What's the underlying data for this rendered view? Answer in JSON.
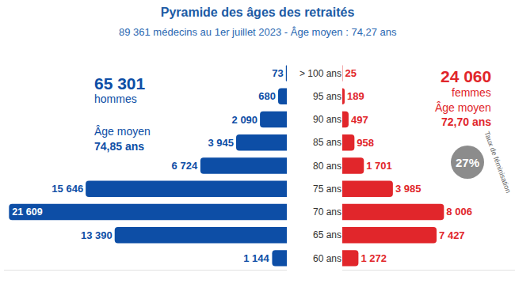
{
  "chart_data": {
    "type": "bar",
    "orientation": "horizontal",
    "title": "Pyramide des âges des retraités",
    "subtitle": "89 361 médecins au 1er juillet 2023 - Âge moyen : 74,27 ans",
    "categories": [
      "60 ans",
      "65 ans",
      "70 ans",
      "75 ans",
      "80 ans",
      "85 ans",
      "90 ans",
      "95 ans",
      "> 100 ans"
    ],
    "series": [
      {
        "name": "hommes",
        "color": "#0d4ea6",
        "values": [
          1144,
          13390,
          21609,
          15646,
          6724,
          3945,
          2090,
          680,
          73
        ],
        "value_labels": [
          "1 144",
          "13 390",
          "21 609",
          "15 646",
          "6 724",
          "3 945",
          "2 090",
          "680",
          "73"
        ],
        "xlim": [
          0,
          22000
        ],
        "xticks": [],
        "total_label": "65 301",
        "mean_age_title": "Âge moyen",
        "mean_age_label": "74,85 ans"
      },
      {
        "name": "femmes",
        "color": "#e1262b",
        "values": [
          1272,
          7427,
          8006,
          3985,
          1701,
          958,
          497,
          189,
          25
        ],
        "value_labels": [
          "1 272",
          "7 427",
          "8 006",
          "3 985",
          "1 701",
          "958",
          "497",
          "189",
          "25"
        ],
        "xlim": [
          0,
          13600
        ],
        "xticks": [],
        "total_label": "24 060",
        "mean_age_title": "Âge moyen",
        "mean_age_label": "72,70 ans"
      }
    ],
    "feminisation_label": "27%",
    "feminisation_text": "Taux de féminisation",
    "data_labels": true,
    "tick_labels": "y",
    "grid": false
  }
}
